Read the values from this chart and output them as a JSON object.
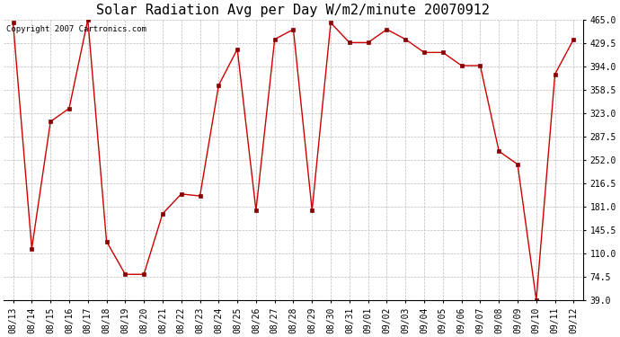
{
  "title": "Solar Radiation Avg per Day W/m2/minute 20070912",
  "copyright_text": "Copyright 2007 Cartronics.com",
  "x_labels": [
    "08/13",
    "08/14",
    "08/15",
    "08/16",
    "08/17",
    "08/18",
    "08/19",
    "08/20",
    "08/21",
    "08/22",
    "08/23",
    "08/24",
    "08/25",
    "08/26",
    "08/27",
    "08/28",
    "08/29",
    "08/30",
    "08/31",
    "09/01",
    "09/02",
    "09/03",
    "09/04",
    "09/05",
    "09/06",
    "09/07",
    "09/08",
    "09/09",
    "09/10",
    "09/11",
    "09/12"
  ],
  "y_values": [
    460,
    117,
    310,
    330,
    465,
    128,
    78,
    78,
    170,
    200,
    197,
    365,
    420,
    175,
    435,
    450,
    175,
    460,
    430,
    430,
    450,
    435,
    415,
    415,
    395,
    395,
    265,
    245,
    39,
    382,
    435
  ],
  "y_min": 39.0,
  "y_max": 465.0,
  "y_ticks": [
    39.0,
    74.5,
    110.0,
    145.5,
    181.0,
    216.5,
    252.0,
    287.5,
    323.0,
    358.5,
    394.0,
    429.5,
    465.0
  ],
  "line_color": "#cc0000",
  "marker_color": "#880000",
  "background_color": "#ffffff",
  "grid_color": "#bbbbbb",
  "title_fontsize": 11,
  "tick_fontsize": 7,
  "copyright_fontsize": 6.5,
  "fig_width": 6.9,
  "fig_height": 3.75,
  "dpi": 100
}
